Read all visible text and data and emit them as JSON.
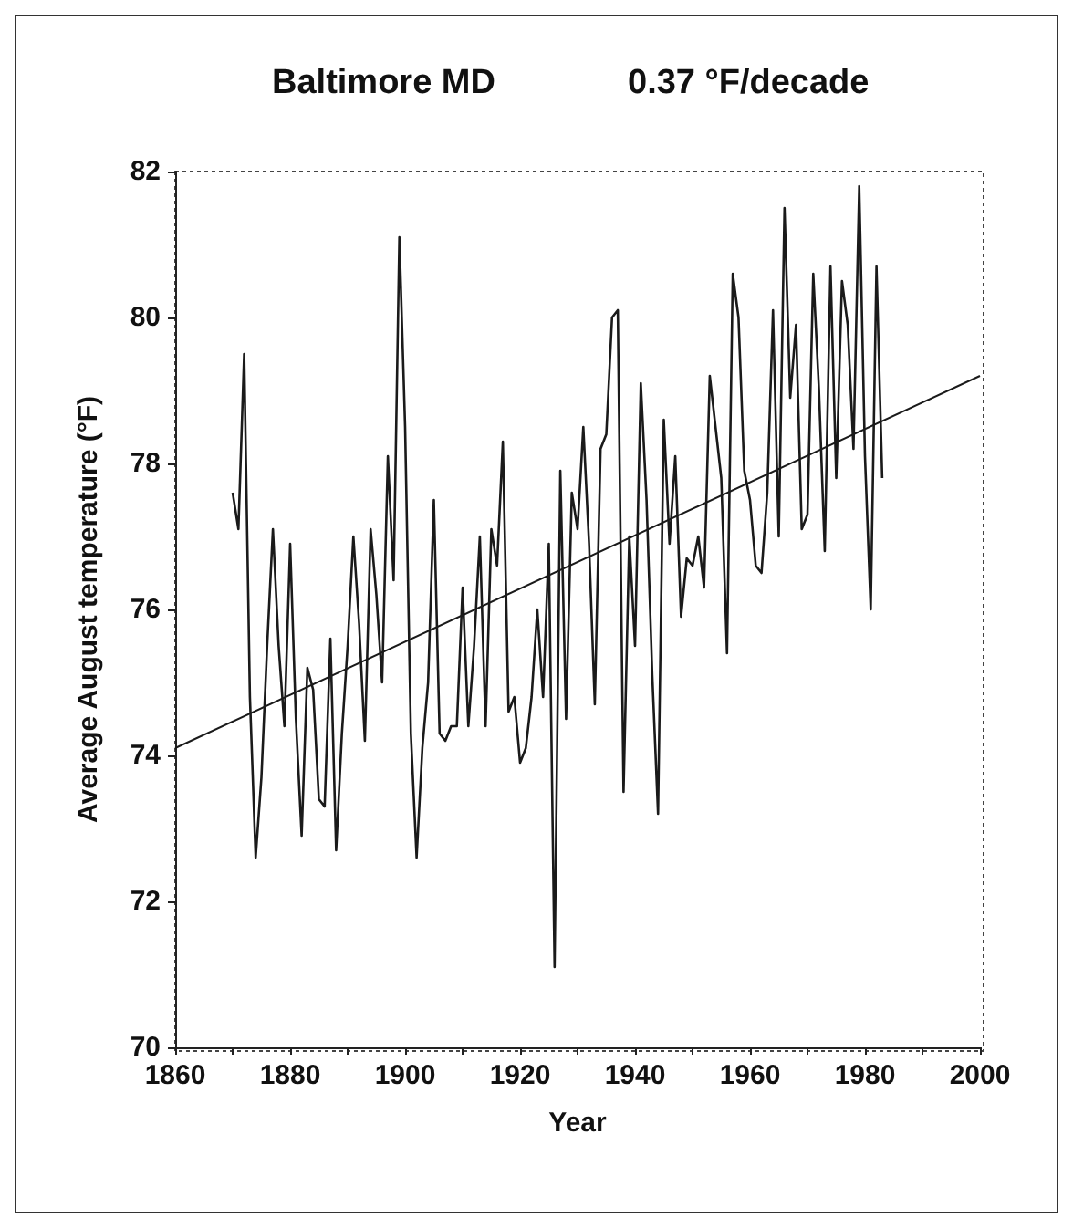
{
  "chart_data": {
    "type": "line",
    "title": "Baltimore MD",
    "subtitle": "0.37 °F/decade",
    "xlabel": "Year",
    "ylabel": "Average August temperature (°F)",
    "xlim": [
      1860,
      2000
    ],
    "xticks": [
      1860,
      1880,
      1900,
      1920,
      1940,
      1960,
      1980,
      2000
    ],
    "ylim": [
      70,
      82
    ],
    "yticks": [
      70,
      72,
      74,
      76,
      78,
      80,
      82
    ],
    "grid": false,
    "marker": "none",
    "line_style": "solid",
    "series": [
      {
        "color": "#1a1a1a",
        "x": [
          1870,
          1871,
          1872,
          1873,
          1874,
          1875,
          1876,
          1877,
          1878,
          1879,
          1880,
          1881,
          1882,
          1883,
          1884,
          1885,
          1886,
          1887,
          1888,
          1889,
          1890,
          1891,
          1892,
          1893,
          1894,
          1895,
          1896,
          1897,
          1898,
          1899,
          1900,
          1901,
          1902,
          1903,
          1904,
          1905,
          1906,
          1907,
          1908,
          1909,
          1910,
          1911,
          1912,
          1913,
          1914,
          1915,
          1916,
          1917,
          1918,
          1919,
          1920,
          1921,
          1922,
          1923,
          1924,
          1925,
          1926,
          1927,
          1928,
          1929,
          1930,
          1931,
          1932,
          1933,
          1934,
          1935,
          1936,
          1937,
          1938,
          1939,
          1940,
          1941,
          1942,
          1943,
          1944,
          1945,
          1946,
          1947,
          1948,
          1949,
          1950,
          1951,
          1952,
          1953,
          1954,
          1955,
          1956,
          1957,
          1958,
          1959,
          1960,
          1961,
          1962,
          1963,
          1964,
          1965,
          1966,
          1967,
          1968,
          1969,
          1970,
          1971,
          1972,
          1973,
          1974,
          1975,
          1976,
          1977,
          1978,
          1979,
          1980,
          1981,
          1982,
          1983
        ],
        "values": [
          77.6,
          77.1,
          79.5,
          74.8,
          72.6,
          73.7,
          75.5,
          77.1,
          75.5,
          74.4,
          76.9,
          74.5,
          72.9,
          75.2,
          74.9,
          73.4,
          73.3,
          75.6,
          72.7,
          74.3,
          75.5,
          77.0,
          75.8,
          74.2,
          77.1,
          76.2,
          75.0,
          78.1,
          76.4,
          81.1,
          78.5,
          74.3,
          72.6,
          74.1,
          75.0,
          77.5,
          74.3,
          74.2,
          74.4,
          74.4,
          76.3,
          74.4,
          75.5,
          77.0,
          74.4,
          77.1,
          76.6,
          78.3,
          74.6,
          74.8,
          73.9,
          74.1,
          74.8,
          76.0,
          74.8,
          76.9,
          71.1,
          77.9,
          74.5,
          77.6,
          77.1,
          78.5,
          76.9,
          74.7,
          78.2,
          78.4,
          80.0,
          80.1,
          73.5,
          77.0,
          75.5,
          79.1,
          77.5,
          75.1,
          73.2,
          78.6,
          76.9,
          78.1,
          75.9,
          76.7,
          76.6,
          77.0,
          76.3,
          79.2,
          78.5,
          77.8,
          75.4,
          80.6,
          80.0,
          77.9,
          77.5,
          76.6,
          76.5,
          77.6,
          80.1,
          77.0,
          81.5,
          78.9,
          79.9,
          77.1,
          77.3,
          80.6,
          79.0,
          76.8,
          80.7,
          77.8,
          80.5,
          79.9,
          78.2,
          81.8,
          78.1,
          76.0,
          80.7,
          77.8
        ]
      },
      {
        "type": "line",
        "color": "#1a1a1a",
        "x": [
          1860,
          2000
        ],
        "values": [
          74.1,
          79.2
        ]
      }
    ]
  }
}
